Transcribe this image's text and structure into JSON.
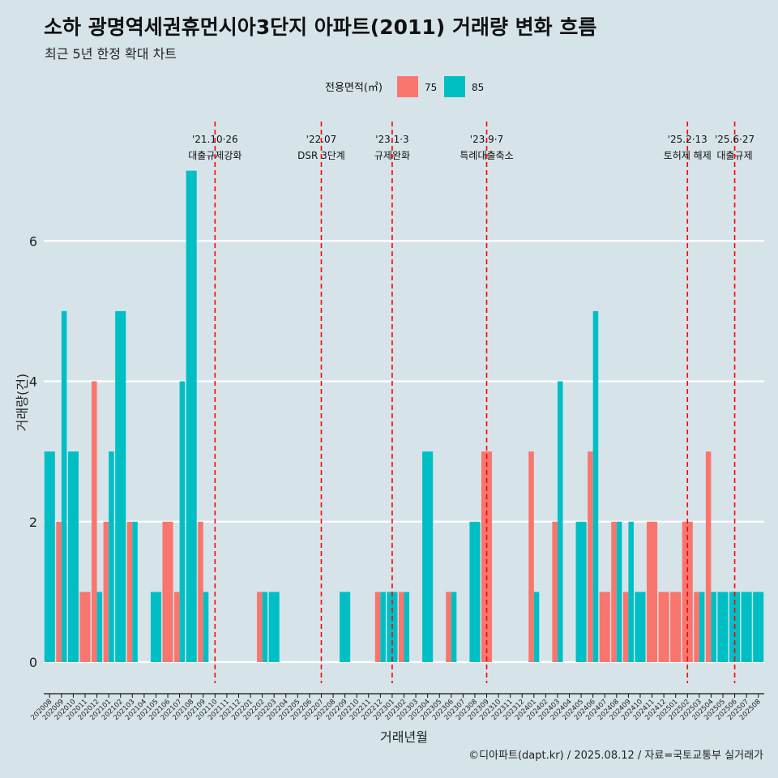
{
  "header": {
    "title": "소하 광명역세권휴먼시아3단지 아파트(2011) 거래량 변화 흐름",
    "subtitle": "최근 5년 한정 확대 차트"
  },
  "footer": {
    "caption": "©디아파트(dapt.kr) / 2025.08.12 / 자료=국토교통부 실거래가"
  },
  "colors": {
    "s75": "#f8766d",
    "s85": "#00bfc4",
    "refline": "#ff0000",
    "grid": "#ffffff",
    "background": "#d6e4ea"
  },
  "chart_data": {
    "type": "bar",
    "xlabel": "거래년월",
    "ylabel": "거래량(건)",
    "ylim": [
      -0.3,
      7.7
    ],
    "yticks": [
      0,
      2,
      4,
      6
    ],
    "legend": {
      "title": "전용면적(㎡)",
      "position": "top"
    },
    "grid": true,
    "categories": [
      "202008",
      "202009",
      "202010",
      "202011",
      "202012",
      "202101",
      "202102",
      "202103",
      "202104",
      "202105",
      "202106",
      "202107",
      "202108",
      "202109",
      "202110",
      "202111",
      "202112",
      "202201",
      "202202",
      "202203",
      "202204",
      "202205",
      "202206",
      "202207",
      "202208",
      "202209",
      "202210",
      "202211",
      "202212",
      "202301",
      "202302",
      "202303",
      "202304",
      "202305",
      "202306",
      "202307",
      "202308",
      "202309",
      "202310",
      "202311",
      "202312",
      "202401",
      "202402",
      "202403",
      "202404",
      "202405",
      "202406",
      "202407",
      "202408",
      "202409",
      "202410",
      "202411",
      "202412",
      "202501",
      "202502",
      "202503",
      "202504",
      "202505",
      "202506",
      "202507",
      "202508"
    ],
    "series": [
      {
        "name": "75",
        "color": "#f8766d",
        "values": [
          0,
          2,
          0,
          1,
          4,
          2,
          0,
          2,
          0,
          0,
          2,
          1,
          0,
          2,
          0,
          0,
          0,
          0,
          1,
          0,
          0,
          0,
          0,
          0,
          0,
          0,
          0,
          0,
          1,
          0,
          1,
          0,
          0,
          0,
          1,
          0,
          0,
          3,
          0,
          0,
          0,
          3,
          0,
          2,
          0,
          0,
          3,
          1,
          2,
          1,
          0,
          2,
          1,
          1,
          2,
          1,
          3,
          0,
          0,
          0,
          0
        ]
      },
      {
        "name": "85",
        "color": "#00bfc4",
        "values": [
          3,
          5,
          3,
          0,
          1,
          3,
          5,
          2,
          0,
          1,
          0,
          4,
          7,
          1,
          0,
          0,
          0,
          0,
          1,
          1,
          0,
          0,
          0,
          0,
          0,
          1,
          0,
          0,
          1,
          1,
          1,
          0,
          3,
          0,
          1,
          0,
          2,
          0,
          0,
          0,
          0,
          1,
          0,
          4,
          0,
          2,
          5,
          0,
          2,
          2,
          1,
          0,
          0,
          0,
          0,
          1,
          1,
          1,
          1,
          1,
          1
        ]
      }
    ],
    "reference_lines": [
      {
        "x": "202110",
        "label1": "'21.10·26",
        "label2": "대출규제강화"
      },
      {
        "x": "202207",
        "label1": "'22.07",
        "label2": "DSR 3단계"
      },
      {
        "x": "202301",
        "label1": "'23.1·3",
        "label2": "규제완화"
      },
      {
        "x": "202309",
        "label1": "'23.9·7",
        "label2": "특례대출축소"
      },
      {
        "x": "202502",
        "label1": "'25.2·13",
        "label2": "토허제 해제"
      },
      {
        "x": "202506",
        "label1": "'25.6·27",
        "label2": "대출규제"
      }
    ]
  }
}
